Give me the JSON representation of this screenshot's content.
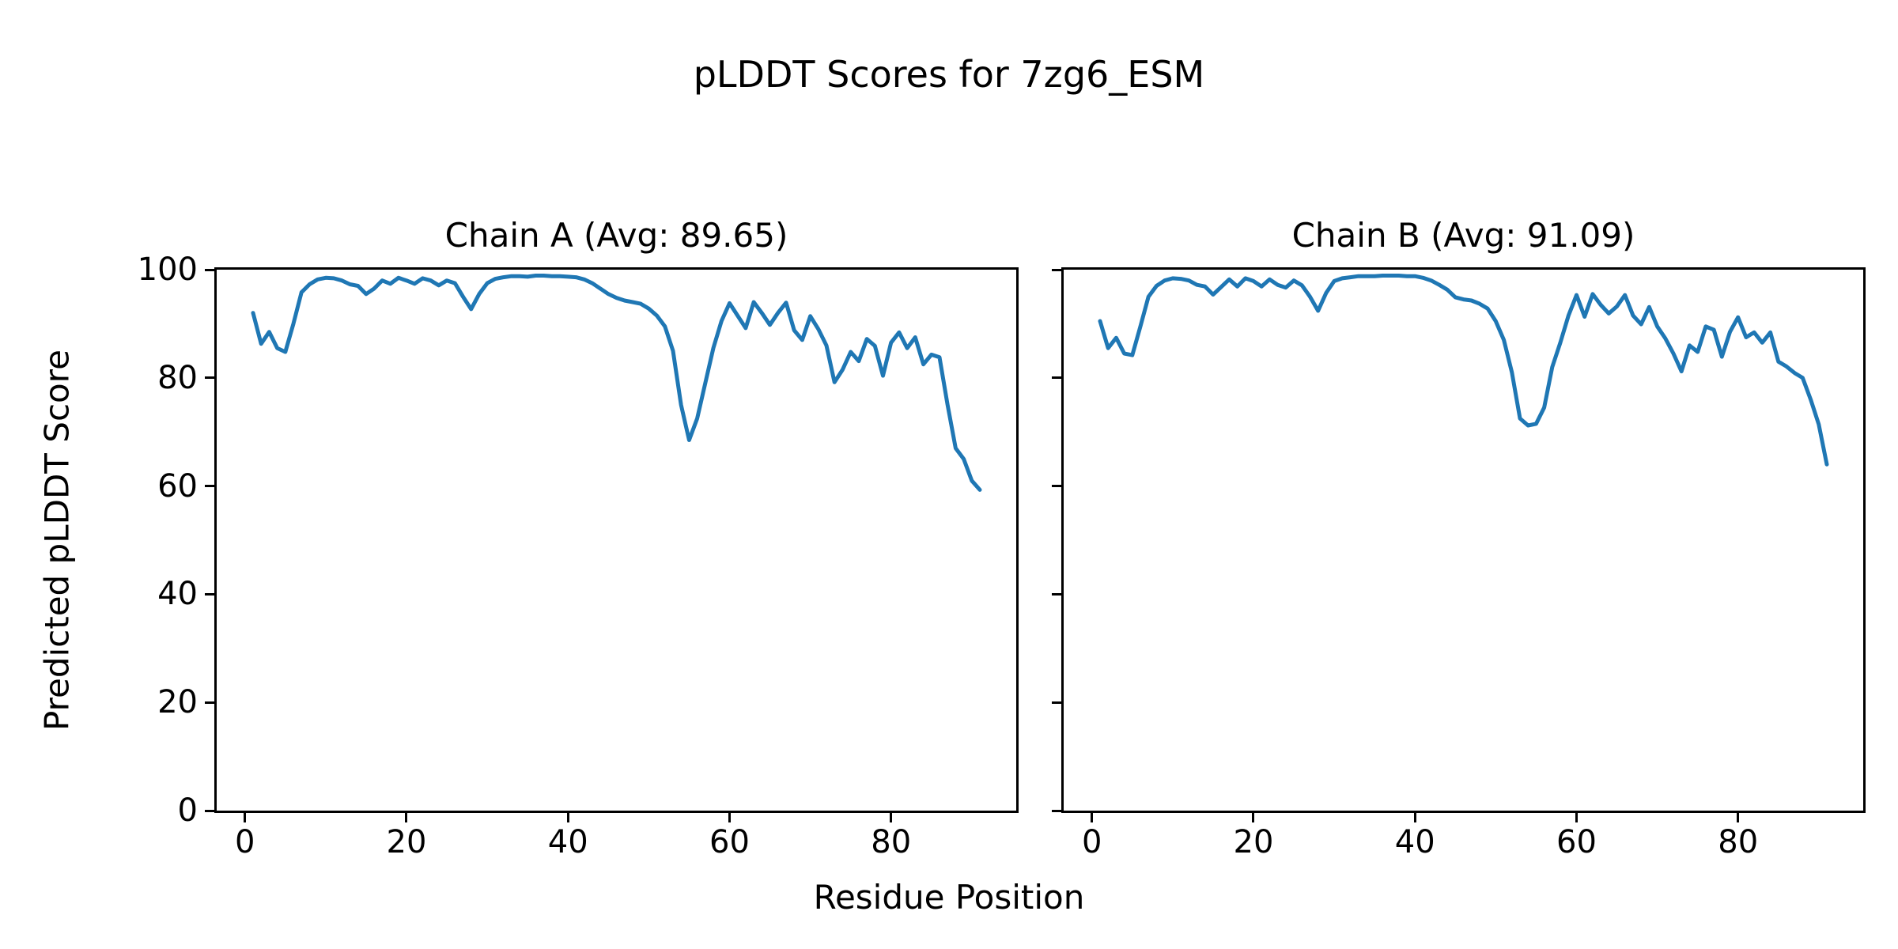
{
  "figure": {
    "suptitle": "pLDDT Scores for 7zg6_ESM",
    "xlabel": "Residue Position",
    "ylabel": "Predicted pLDDT Score",
    "background": "#ffffff",
    "text_color": "#000000",
    "spine_color": "#000000"
  },
  "chart_data": [
    {
      "type": "line",
      "title": "Chain A (Avg: 89.65)",
      "series_name": "Chain A pLDDT",
      "avg": 89.65,
      "line_color": "#1f77b4",
      "grid": false,
      "legend": "none",
      "xlim": [
        -3.5,
        95.5
      ],
      "ylim": [
        0,
        100
      ],
      "xticks": [
        0,
        20,
        40,
        60,
        80
      ],
      "yticks": [
        0,
        20,
        40,
        60,
        80,
        100
      ],
      "show_ytick_labels": true,
      "x_start": 1,
      "x_step": 1,
      "values": [
        92.0,
        86.3,
        88.5,
        85.5,
        84.8,
        90.0,
        95.8,
        97.3,
        98.2,
        98.5,
        98.4,
        98.0,
        97.3,
        97.0,
        95.5,
        96.5,
        98.0,
        97.4,
        98.5,
        98.0,
        97.4,
        98.4,
        98.0,
        97.1,
        98.0,
        97.5,
        95.0,
        92.7,
        95.5,
        97.5,
        98.3,
        98.6,
        98.8,
        98.8,
        98.7,
        98.9,
        98.9,
        98.8,
        98.8,
        98.7,
        98.6,
        98.2,
        97.5,
        96.5,
        95.5,
        94.8,
        94.3,
        94.0,
        93.7,
        92.8,
        91.5,
        89.5,
        85.0,
        75.0,
        68.5,
        72.5,
        79.0,
        85.5,
        90.5,
        93.8,
        91.5,
        89.2,
        94.0,
        92.0,
        89.8,
        92.0,
        93.9,
        88.8,
        87.0,
        91.4,
        89.0,
        86.0,
        79.2,
        81.5,
        84.8,
        83.1,
        87.2,
        85.9,
        80.4,
        86.5,
        88.4,
        85.5,
        87.5,
        82.5,
        84.3,
        83.8,
        75.0,
        67.0,
        65.0,
        61.0,
        59.3
      ]
    },
    {
      "type": "line",
      "title": "Chain B (Avg: 91.09)",
      "series_name": "Chain B pLDDT",
      "avg": 91.09,
      "line_color": "#1f77b4",
      "grid": false,
      "legend": "none",
      "xlim": [
        -3.5,
        95.5
      ],
      "ylim": [
        0,
        100
      ],
      "xticks": [
        0,
        20,
        40,
        60,
        80
      ],
      "yticks": [
        0,
        20,
        40,
        60,
        80,
        100
      ],
      "show_ytick_labels": false,
      "x_start": 1,
      "x_step": 1,
      "values": [
        90.5,
        85.5,
        87.4,
        84.5,
        84.2,
        89.5,
        95.0,
        97.0,
        98.0,
        98.4,
        98.3,
        98.0,
        97.2,
        96.9,
        95.4,
        96.8,
        98.2,
        96.9,
        98.4,
        97.9,
        96.9,
        98.2,
        97.2,
        96.7,
        98.0,
        97.1,
        95.0,
        92.4,
        95.7,
        97.9,
        98.4,
        98.6,
        98.8,
        98.8,
        98.8,
        98.9,
        98.9,
        98.9,
        98.8,
        98.8,
        98.5,
        98.0,
        97.2,
        96.3,
        94.9,
        94.5,
        94.3,
        93.7,
        92.8,
        90.5,
        87.0,
        81.0,
        72.5,
        71.2,
        71.5,
        74.5,
        82.0,
        86.5,
        91.5,
        95.3,
        91.3,
        95.5,
        93.5,
        91.9,
        93.2,
        95.3,
        91.5,
        89.9,
        93.1,
        89.5,
        87.3,
        84.5,
        81.2,
        86.0,
        84.8,
        89.5,
        88.9,
        83.9,
        88.5,
        91.2,
        87.5,
        88.4,
        86.5,
        88.4,
        83.0,
        82.1,
        80.9,
        80.0,
        76.0,
        71.4,
        64.0
      ]
    }
  ]
}
